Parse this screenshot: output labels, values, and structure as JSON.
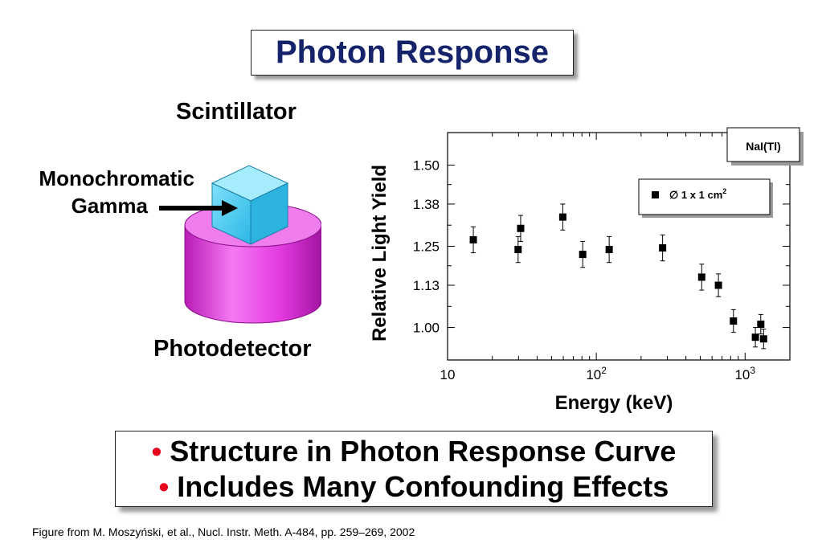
{
  "title": "Photon Response",
  "diagram": {
    "scintillator_label": "Scintillator",
    "gamma_label_line1": "Monochromatic",
    "gamma_label_line2": "Gamma",
    "photodetector_label": "Photodetector",
    "colors": {
      "cube": "#3ec9f0",
      "cylinder": "#e33ae0",
      "arrow": "#000000"
    }
  },
  "chart_data": {
    "type": "scatter",
    "title": "",
    "xlabel": "Energy (keV)",
    "ylabel": "Relative Light Yield",
    "x_scale": "log",
    "xlim": [
      10,
      2000
    ],
    "ylim": [
      0.9,
      1.6
    ],
    "x_ticks": [
      {
        "value": 10,
        "base": "10",
        "exp": ""
      },
      {
        "value": 100,
        "base": "10",
        "exp": "2"
      },
      {
        "value": 1000,
        "base": "10",
        "exp": "3"
      }
    ],
    "y_ticks": [
      {
        "value": 1.5,
        "label": "1.50"
      },
      {
        "value": 1.38,
        "label": "1.38"
      },
      {
        "value": 1.25,
        "label": "1.25"
      },
      {
        "value": 1.13,
        "label": "1.13"
      },
      {
        "value": 1.0,
        "label": "1.00"
      }
    ],
    "material_label": "NaI(Tl)",
    "legend_label": "∅ 1 x 1 cm",
    "legend_sup": "2",
    "legend_position": "top-right",
    "series": [
      {
        "marker": "square",
        "color": "#000000",
        "points": [
          {
            "x": 14.9,
            "y": 1.27,
            "err": 0.04
          },
          {
            "x": 29.8,
            "y": 1.24,
            "err": 0.04
          },
          {
            "x": 31.0,
            "y": 1.305,
            "err": 0.04
          },
          {
            "x": 59.5,
            "y": 1.34,
            "err": 0.04
          },
          {
            "x": 81.0,
            "y": 1.225,
            "err": 0.04
          },
          {
            "x": 122.0,
            "y": 1.24,
            "err": 0.04
          },
          {
            "x": 279.0,
            "y": 1.245,
            "err": 0.04
          },
          {
            "x": 511.0,
            "y": 1.155,
            "err": 0.04
          },
          {
            "x": 662.0,
            "y": 1.13,
            "err": 0.035
          },
          {
            "x": 835.0,
            "y": 1.02,
            "err": 0.035
          },
          {
            "x": 1173.0,
            "y": 0.97,
            "err": 0.03
          },
          {
            "x": 1275.0,
            "y": 1.01,
            "err": 0.03
          },
          {
            "x": 1332.0,
            "y": 0.965,
            "err": 0.03
          }
        ]
      }
    ]
  },
  "bullets": [
    "Structure in Photon Response Curve",
    "Includes Many Confounding Effects"
  ],
  "bullet_symbol": "•",
  "footnote": "Figure from M. Moszyński, et al., Nucl. Instr. Meth. A-484, pp. 259–269, 2002"
}
